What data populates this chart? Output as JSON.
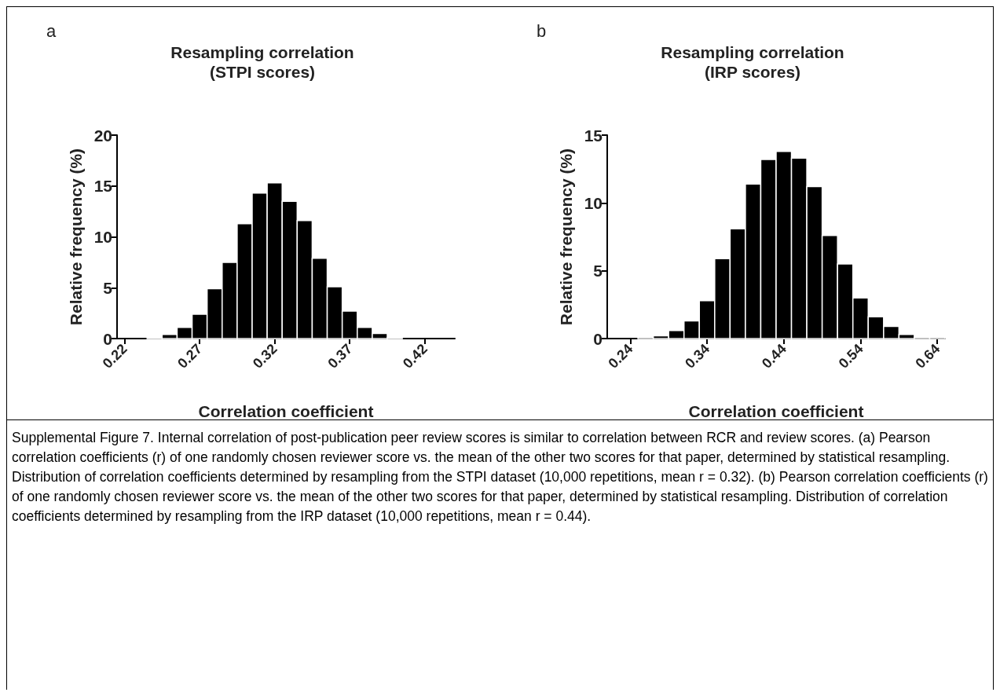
{
  "chart_data": [
    {
      "type": "histogram",
      "title": "Resampling correlation\n(STPI scores)",
      "xlabel": "Correlation coefficient",
      "ylabel": "Relative frequency (%)",
      "annotations": [
        "a"
      ],
      "color": "#000000",
      "bins": [
        0.235,
        0.245,
        0.255,
        0.265,
        0.275,
        0.285,
        0.295,
        0.305,
        0.315,
        0.325,
        0.335,
        0.345,
        0.355,
        0.365,
        0.375,
        0.385,
        0.395,
        0.405
      ],
      "values": [
        0.1,
        0.4,
        1.1,
        2.4,
        4.9,
        7.5,
        11.3,
        14.3,
        15.3,
        13.5,
        11.6,
        7.9,
        5.1,
        2.7,
        1.1,
        0.5,
        0.1
      ],
      "xlim": [
        0.215,
        0.44
      ],
      "xticks": [
        0.22,
        0.27,
        0.32,
        0.37,
        0.42
      ],
      "ylim": [
        0,
        20
      ],
      "yticks": [
        0,
        5,
        10,
        15,
        20
      ]
    },
    {
      "type": "histogram",
      "title": "Resampling correlation\n(IRP scores)",
      "xlabel": "Correlation coefficient",
      "ylabel": "Relative frequency (%)",
      "annotations": [
        "b",
        "Supplemental Figure 7. Internal correlation of post-publication peer review scores is similar to correlation between RCR and review scores. (a) Pearson correlation coefficients (r) of one randomly chosen reviewer score vs. the mean of the other two scores for that paper, determined by statistical resampling. Distribution of correlation coefficients determined by resampling from the STPI dataset (10,000 repetitions, mean r = 0.32). (b) Pearson correlation coefficients (r) of one randomly chosen reviewer score vs. the mean of the other two scores for that paper, determined by statistical resampling. Distribution of correlation coefficients determined by resampling from the IRP dataset (10,000 repetitions, mean r = 0.44)."
      ],
      "color": "#000000",
      "bins": [
        0.25,
        0.27,
        0.29,
        0.31,
        0.33,
        0.35,
        0.37,
        0.39,
        0.41,
        0.43,
        0.45,
        0.47,
        0.49,
        0.51,
        0.53,
        0.55,
        0.57,
        0.59,
        0.61,
        0.63,
        0.65
      ],
      "values": [
        0.1,
        0.2,
        0.6,
        1.3,
        2.8,
        5.9,
        8.1,
        11.4,
        13.2,
        13.8,
        13.3,
        11.2,
        7.6,
        5.5,
        3.0,
        1.6,
        0.9,
        0.3,
        0.1,
        0.1
      ],
      "xlim": [
        0.21,
        0.65
      ],
      "xticks": [
        0.24,
        0.34,
        0.44,
        0.54,
        0.64
      ],
      "ylim": [
        0,
        15
      ],
      "yticks": [
        0,
        5,
        10,
        15
      ]
    }
  ]
}
